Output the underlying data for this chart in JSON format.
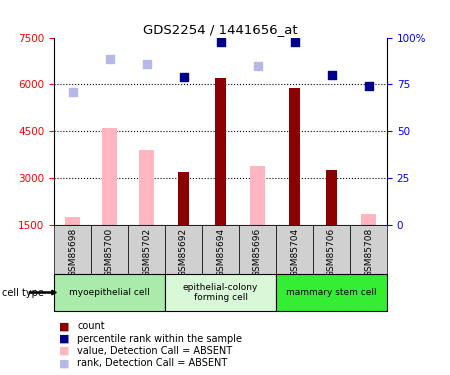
{
  "title": "GDS2254 / 1441656_at",
  "samples": [
    "GSM85698",
    "GSM85700",
    "GSM85702",
    "GSM85692",
    "GSM85694",
    "GSM85696",
    "GSM85704",
    "GSM85706",
    "GSM85708"
  ],
  "count_values": [
    null,
    null,
    null,
    3200,
    6200,
    null,
    5900,
    3250,
    null
  ],
  "percentile_rank": [
    null,
    null,
    null,
    6250,
    7350,
    null,
    7350,
    6300,
    5950
  ],
  "value_absent": [
    1750,
    4600,
    3900,
    null,
    null,
    3400,
    null,
    null,
    1850
  ],
  "rank_absent": [
    5750,
    6800,
    6650,
    null,
    null,
    6600,
    null,
    null,
    null
  ],
  "ylim_left": [
    1500,
    7500
  ],
  "ylim_right": [
    0,
    100
  ],
  "yticks_left": [
    1500,
    3000,
    4500,
    6000,
    7500
  ],
  "yticks_right": [
    0,
    25,
    50,
    75,
    100
  ],
  "grid_values": [
    3000,
    4500,
    6000
  ],
  "bar_width": 0.4,
  "colors": {
    "count": "#8B0000",
    "percentile": "#00008B",
    "value_absent": "#FFB6C1",
    "rank_absent": "#b8b8e8"
  },
  "group_labels": [
    "myoepithelial cell",
    "epithelial-colony\nforming cell",
    "mammary stem cell"
  ],
  "group_ranges": [
    [
      0,
      2
    ],
    [
      3,
      5
    ],
    [
      6,
      8
    ]
  ],
  "group_colors": [
    "#aaeaaa",
    "#d8f8d8",
    "#33ee33"
  ],
  "legend_items": [
    {
      "color": "#8B0000",
      "label": "count"
    },
    {
      "color": "#00008B",
      "label": "percentile rank within the sample"
    },
    {
      "color": "#FFB6C1",
      "label": "value, Detection Call = ABSENT"
    },
    {
      "color": "#b8b8e8",
      "label": "rank, Detection Call = ABSENT"
    }
  ]
}
